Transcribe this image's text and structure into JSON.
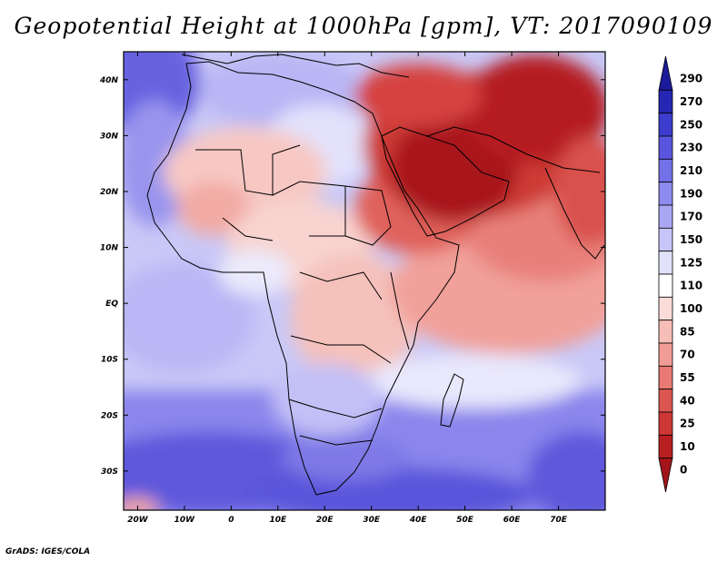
{
  "title": "Geopotential Height at 1000hPa [gpm], VT: 2017090109",
  "footer": "GrADS: IGES/COLA",
  "map": {
    "lon_range": [
      -23,
      80
    ],
    "lat_range": [
      -37,
      45
    ],
    "x_ticks": [
      "20W",
      "10W",
      "0",
      "10E",
      "20E",
      "30E",
      "40E",
      "50E",
      "60E",
      "70E"
    ],
    "y_ticks": [
      "40N",
      "30N",
      "20N",
      "10N",
      "EQ",
      "10S",
      "20S",
      "30S"
    ],
    "regions": [
      {
        "name": "arabia-low",
        "level": "0-25",
        "color": "#a8141a"
      },
      {
        "name": "iran-low",
        "level": "0-25",
        "color": "#b01c20"
      },
      {
        "name": "north-africa",
        "level": "85-110",
        "color": "#f5b5b0"
      },
      {
        "name": "indian-ocean-north",
        "level": "70-100",
        "color": "#ef9a94"
      },
      {
        "name": "southern-ocean",
        "level": "190-250",
        "color": "#6e66de"
      },
      {
        "name": "atlantic-west",
        "level": "150-190",
        "color": "#a8a6f0"
      }
    ]
  },
  "colorbar": {
    "labels": [
      "290",
      "270",
      "250",
      "230",
      "210",
      "190",
      "170",
      "150",
      "125",
      "110",
      "100",
      "85",
      "70",
      "55",
      "40",
      "25",
      "10",
      "0"
    ],
    "colors": [
      "#1b1b9c",
      "#2626b4",
      "#3c3ccd",
      "#5a55de",
      "#7470e8",
      "#8e8bee",
      "#a9a7f4",
      "#c6c5f8",
      "#e1e1fb",
      "#ffffff",
      "#fbdcd8",
      "#f7bdb7",
      "#f19d96",
      "#e87973",
      "#dc5651",
      "#cd3734",
      "#b91f21",
      "#a3141a"
    ]
  }
}
